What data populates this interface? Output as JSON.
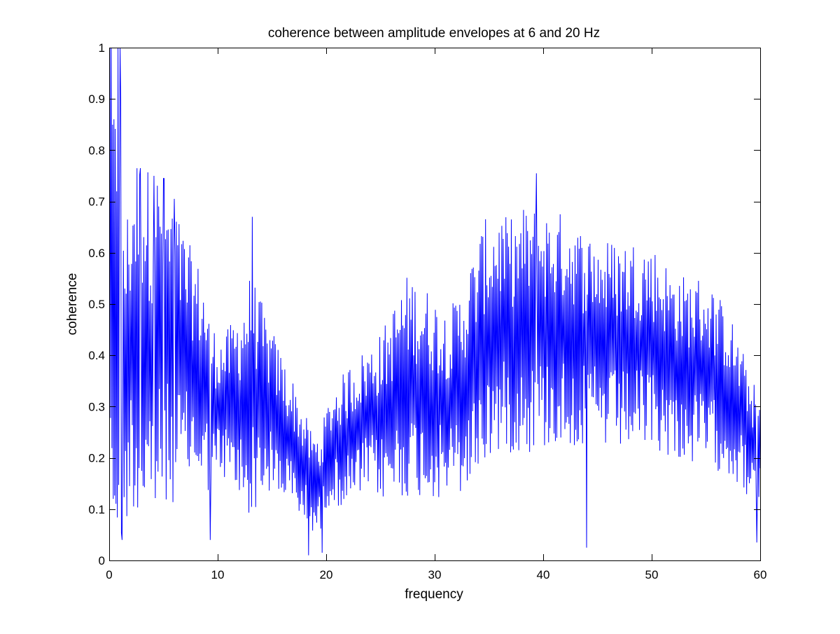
{
  "chart_data": {
    "type": "line",
    "title": "coherence between amplitude envelopes at 6 and 20 Hz",
    "xlabel": "frequency",
    "ylabel": "coherence",
    "xlim": [
      0,
      60
    ],
    "ylim": [
      0,
      1
    ],
    "xticks": [
      0,
      10,
      20,
      30,
      40,
      50,
      60
    ],
    "yticks": [
      0,
      0.1,
      0.2,
      0.3,
      0.4,
      0.5,
      0.6,
      0.7,
      0.8,
      0.9,
      1
    ],
    "xtick_labels": [
      "0",
      "10",
      "20",
      "30",
      "40",
      "50",
      "60"
    ],
    "ytick_labels": [
      "0",
      "0.1",
      "0.2",
      "0.3",
      "0.4",
      "0.5",
      "0.6",
      "0.7",
      "0.8",
      "0.9",
      "1"
    ],
    "grid": false,
    "box": true,
    "series": [
      {
        "color": "#0000ff",
        "sample_spacing": 0.0625,
        "x": [
          0,
          0.25,
          0.5,
          0.75,
          1.0,
          1.25,
          1.5,
          1.75,
          2.0,
          2.25,
          2.5,
          2.75,
          3.0,
          3.25,
          3.5,
          3.75,
          4.0,
          4.25,
          4.5,
          4.75,
          5.0,
          5.5,
          6.0,
          6.5,
          7.0,
          7.5,
          8.0,
          8.5,
          9.0,
          9.5,
          10.0,
          10.5,
          11.0,
          11.5,
          12.0,
          12.5,
          13.0,
          13.5,
          14.0,
          14.5,
          15.0,
          15.5,
          16.0,
          16.5,
          17.0,
          17.5,
          18.0,
          18.5,
          19.0,
          19.5,
          20.0,
          20.5,
          21.0,
          21.5,
          22.0,
          22.5,
          23.0,
          23.5,
          24.0,
          24.5,
          25.0,
          25.5,
          26.0,
          26.5,
          27.0,
          27.5,
          28.0,
          28.5,
          29.0,
          29.5,
          30.0,
          30.5,
          31.0,
          31.5,
          32.0,
          32.5,
          33.0,
          33.5,
          34.0,
          34.5,
          35.0,
          35.5,
          36.0,
          36.5,
          37.0,
          37.5,
          38.0,
          38.5,
          39.0,
          39.5,
          40.0,
          40.5,
          41.0,
          41.5,
          42.0,
          42.5,
          43.0,
          43.5,
          44.0,
          44.5,
          45.0,
          45.5,
          46.0,
          46.5,
          47.0,
          47.5,
          48.0,
          48.5,
          49.0,
          49.5,
          50.0,
          50.5,
          51.0,
          51.5,
          52.0,
          52.5,
          53.0,
          53.5,
          54.0,
          54.5,
          55.0,
          55.5,
          56.0,
          56.5,
          57.0,
          57.5,
          58.0,
          58.5,
          59.0,
          59.5,
          60.0
        ],
        "mean": [
          0.62,
          0.55,
          0.45,
          0.5,
          0.5,
          0.42,
          0.35,
          0.4,
          0.42,
          0.45,
          0.43,
          0.42,
          0.43,
          0.43,
          0.42,
          0.42,
          0.42,
          0.42,
          0.42,
          0.42,
          0.42,
          0.42,
          0.41,
          0.4,
          0.39,
          0.38,
          0.37,
          0.35,
          0.33,
          0.3,
          0.3,
          0.3,
          0.3,
          0.3,
          0.3,
          0.31,
          0.32,
          0.32,
          0.31,
          0.3,
          0.29,
          0.27,
          0.26,
          0.24,
          0.22,
          0.2,
          0.18,
          0.16,
          0.15,
          0.15,
          0.2,
          0.22,
          0.23,
          0.23,
          0.24,
          0.25,
          0.26,
          0.27,
          0.28,
          0.28,
          0.28,
          0.29,
          0.3,
          0.32,
          0.33,
          0.34,
          0.34,
          0.33,
          0.33,
          0.32,
          0.32,
          0.31,
          0.31,
          0.31,
          0.32,
          0.33,
          0.35,
          0.37,
          0.4,
          0.42,
          0.43,
          0.44,
          0.45,
          0.44,
          0.44,
          0.44,
          0.45,
          0.45,
          0.45,
          0.45,
          0.45,
          0.45,
          0.45,
          0.45,
          0.45,
          0.45,
          0.44,
          0.43,
          0.43,
          0.43,
          0.43,
          0.42,
          0.42,
          0.42,
          0.42,
          0.42,
          0.42,
          0.42,
          0.42,
          0.42,
          0.42,
          0.41,
          0.4,
          0.39,
          0.38,
          0.38,
          0.37,
          0.37,
          0.37,
          0.37,
          0.37,
          0.36,
          0.35,
          0.34,
          0.33,
          0.31,
          0.29,
          0.27,
          0.24,
          0.22,
          0.21
        ],
        "amplitude": [
          0.38,
          0.4,
          0.38,
          0.45,
          0.5,
          0.32,
          0.28,
          0.28,
          0.28,
          0.32,
          0.34,
          0.34,
          0.34,
          0.34,
          0.32,
          0.32,
          0.32,
          0.32,
          0.32,
          0.32,
          0.31,
          0.28,
          0.27,
          0.24,
          0.23,
          0.21,
          0.2,
          0.2,
          0.18,
          0.15,
          0.13,
          0.13,
          0.14,
          0.16,
          0.18,
          0.2,
          0.22,
          0.2,
          0.18,
          0.16,
          0.15,
          0.14,
          0.13,
          0.12,
          0.12,
          0.11,
          0.1,
          0.09,
          0.09,
          0.09,
          0.09,
          0.1,
          0.11,
          0.12,
          0.13,
          0.13,
          0.13,
          0.13,
          0.13,
          0.14,
          0.15,
          0.16,
          0.17,
          0.18,
          0.19,
          0.2,
          0.2,
          0.19,
          0.19,
          0.19,
          0.18,
          0.18,
          0.17,
          0.17,
          0.18,
          0.19,
          0.2,
          0.21,
          0.21,
          0.22,
          0.22,
          0.22,
          0.22,
          0.21,
          0.21,
          0.21,
          0.22,
          0.22,
          0.22,
          0.22,
          0.22,
          0.21,
          0.21,
          0.21,
          0.21,
          0.21,
          0.2,
          0.2,
          0.2,
          0.19,
          0.19,
          0.19,
          0.19,
          0.19,
          0.19,
          0.19,
          0.19,
          0.19,
          0.19,
          0.19,
          0.18,
          0.18,
          0.18,
          0.17,
          0.17,
          0.17,
          0.17,
          0.17,
          0.17,
          0.17,
          0.17,
          0.16,
          0.16,
          0.15,
          0.15,
          0.14,
          0.13,
          0.12,
          0.12,
          0.11,
          0.1
        ],
        "peaks": [
          {
            "x": 0.0,
            "y": 0.86
          },
          {
            "x": 0.06,
            "y": 1.0
          },
          {
            "x": 0.4,
            "y": 0.12
          },
          {
            "x": 0.8,
            "y": 1.0
          },
          {
            "x": 1.0,
            "y": 1.0
          },
          {
            "x": 1.2,
            "y": 0.04
          },
          {
            "x": 2.9,
            "y": 0.765
          },
          {
            "x": 4.1,
            "y": 0.75
          },
          {
            "x": 5.0,
            "y": 0.745
          },
          {
            "x": 6.0,
            "y": 0.705
          },
          {
            "x": 9.3,
            "y": 0.04
          },
          {
            "x": 13.2,
            "y": 0.67
          },
          {
            "x": 18.4,
            "y": 0.01
          },
          {
            "x": 19.6,
            "y": 0.015
          },
          {
            "x": 39.4,
            "y": 0.755
          },
          {
            "x": 44.0,
            "y": 0.025
          },
          {
            "x": 59.7,
            "y": 0.035
          }
        ]
      }
    ]
  }
}
